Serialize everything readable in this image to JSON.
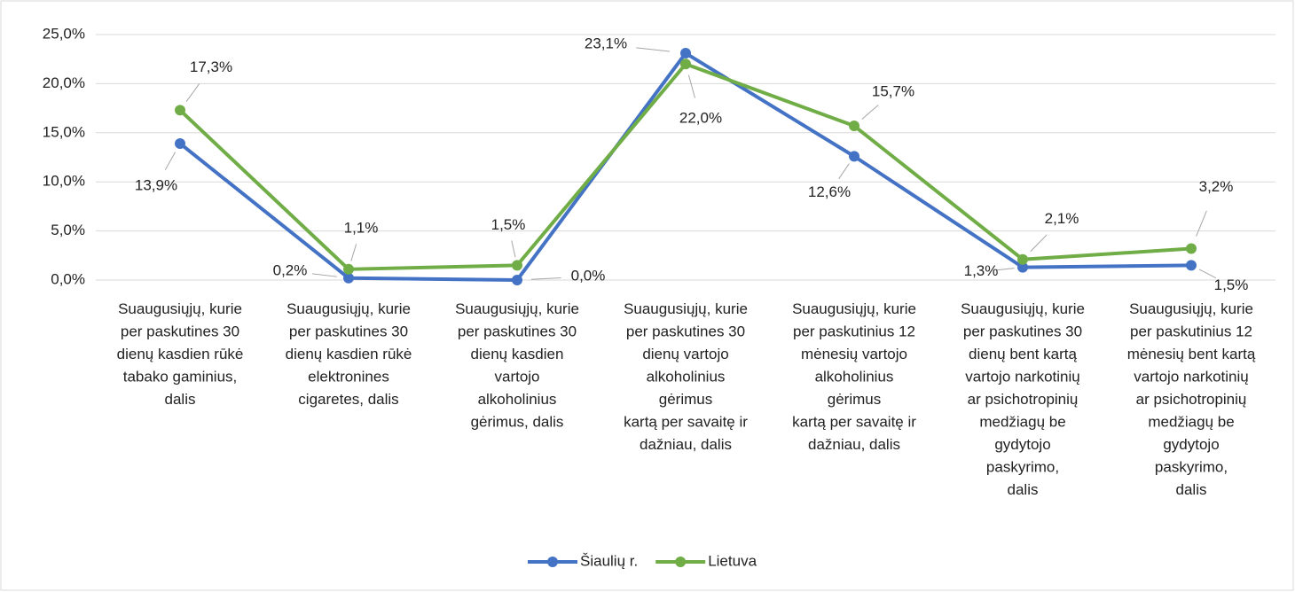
{
  "chart_data": {
    "type": "line",
    "categories": [
      "Suaugusiųjų, kurie\nper paskutines 30\ndienų kasdien rūkė\ntabako gaminius,\ndalis",
      "Suaugusiųjų, kurie\nper paskutines 30\ndienų kasdien rūkė\nelektronines\ncigaretes, dalis",
      "Suaugusiųjų, kurie\nper paskutines 30\ndienų kasdien\nvartojo\nalkoholinius\ngėrimus, dalis",
      "Suaugusiųjų, kurie\nper paskutines 30\ndienų vartojo\nalkoholinius\ngėrimus\nkartą per savaitę ir\ndažniau, dalis",
      "Suaugusiųjų, kurie\nper paskutinius 12\nmėnesių vartojo\nalkoholinius\ngėrimus\nkartą per savaitę ir\ndažniau, dalis",
      "Suaugusiųjų, kurie\nper paskutines 30\ndienų bent kartą\nvartojo narkotinių\nar psichotropinių\nmedžiagų be\ngydytojo\npaskyrimo,\ndalis",
      "Suaugusiųjų, kurie\nper paskutinius 12\nmėnesių bent kartą\nvartojo narkotinių\nar psichotropinių\nmedžiagų be\ngydytojo\npaskyrimo,\ndalis"
    ],
    "series": [
      {
        "name": "Šiaulių r.",
        "color": "#4472c4",
        "values": [
          13.9,
          0.2,
          0.0,
          23.1,
          12.6,
          1.3,
          1.5
        ],
        "value_labels": [
          "13,9%",
          "0,2%",
          "0,0%",
          "23,1%",
          "12,6%",
          "1,3%",
          "1,5%"
        ]
      },
      {
        "name": "Lietuva",
        "color": "#70ad47",
        "values": [
          17.3,
          1.1,
          1.5,
          22.0,
          15.7,
          2.1,
          3.2
        ],
        "value_labels": [
          "17,3%",
          "1,1%",
          "1,5%",
          "22,0%",
          "15,7%",
          "2,1%",
          "3,2%"
        ]
      }
    ],
    "ylim": [
      0,
      25
    ],
    "yticks": [
      {
        "value": 0,
        "label": "0,0%"
      },
      {
        "value": 5,
        "label": "5,0%"
      },
      {
        "value": 10,
        "label": "10,0%"
      },
      {
        "value": 15,
        "label": "15,0%"
      },
      {
        "value": 20,
        "label": "20,0%"
      },
      {
        "value": 25,
        "label": "25,0%"
      }
    ],
    "grid": true,
    "legend": "bottom"
  }
}
